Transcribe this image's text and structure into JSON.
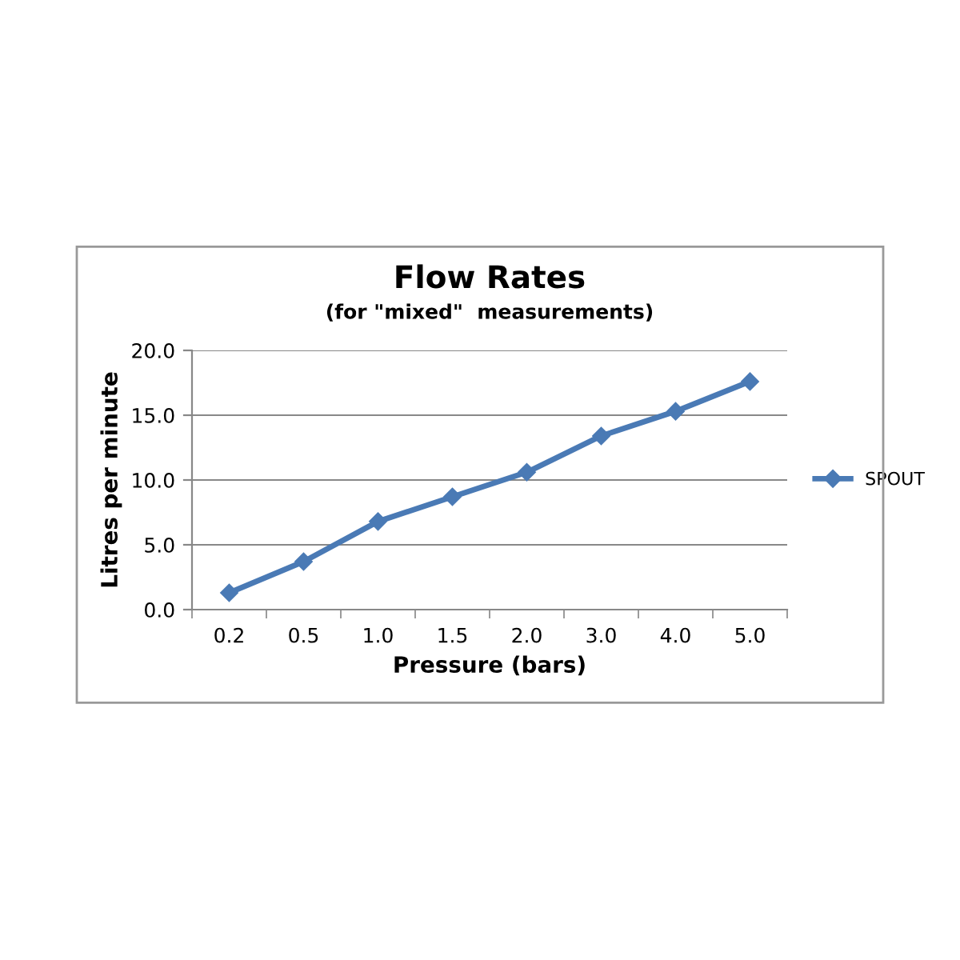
{
  "chart_data": {
    "type": "line",
    "title": "Flow Rates",
    "subtitle": "(for \"mixed\"  measurements)",
    "xlabel": "Pressure (bars)",
    "ylabel": "Litres per minute",
    "categories": [
      "0.2",
      "0.5",
      "1.0",
      "1.5",
      "2.0",
      "3.0",
      "4.0",
      "5.0"
    ],
    "series": [
      {
        "name": "SPOUT",
        "color": "#4a7ab5",
        "values": [
          1.3,
          3.7,
          6.8,
          8.7,
          10.6,
          13.4,
          15.3,
          17.6
        ]
      }
    ],
    "ylim": [
      0,
      20
    ],
    "yticks": [
      {
        "value": 0,
        "label": "0.0"
      },
      {
        "value": 5,
        "label": "5.0"
      },
      {
        "value": 10,
        "label": "10.0"
      },
      {
        "value": 15,
        "label": "15.0"
      },
      {
        "value": 20,
        "label": "20.0"
      }
    ],
    "grid": "y",
    "legend": "right",
    "marker": "diamond",
    "line_style": "solid"
  }
}
